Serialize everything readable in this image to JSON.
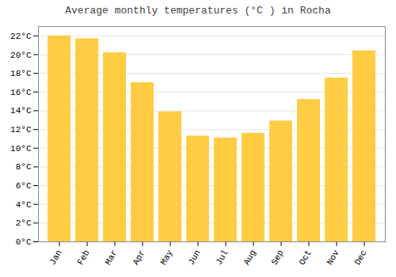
{
  "chart_data": {
    "type": "bar",
    "title": "Average monthly temperatures (°C ) in Rocha",
    "categories": [
      "Jan",
      "Feb",
      "Mar",
      "Apr",
      "May",
      "Jun",
      "Jul",
      "Aug",
      "Sep",
      "Oct",
      "Nov",
      "Dec"
    ],
    "values": [
      22.0,
      21.7,
      20.2,
      17.0,
      13.9,
      11.3,
      11.1,
      11.6,
      12.9,
      15.2,
      17.5,
      20.4
    ],
    "color": "#FFCC44",
    "ylim": [
      0,
      23
    ],
    "yticks": [
      {
        "value": 0,
        "label": "0°C"
      },
      {
        "value": 2,
        "label": "2°C"
      },
      {
        "value": 4,
        "label": "4°C"
      },
      {
        "value": 6,
        "label": "6°C"
      },
      {
        "value": 8,
        "label": "8°C"
      },
      {
        "value": 10,
        "label": "10°C"
      },
      {
        "value": 12,
        "label": "12°C"
      },
      {
        "value": 14,
        "label": "14°C"
      },
      {
        "value": 16,
        "label": "16°C"
      },
      {
        "value": 18,
        "label": "18°C"
      },
      {
        "value": 20,
        "label": "20°C"
      },
      {
        "value": 22,
        "label": "22°C"
      }
    ],
    "grid": true
  }
}
